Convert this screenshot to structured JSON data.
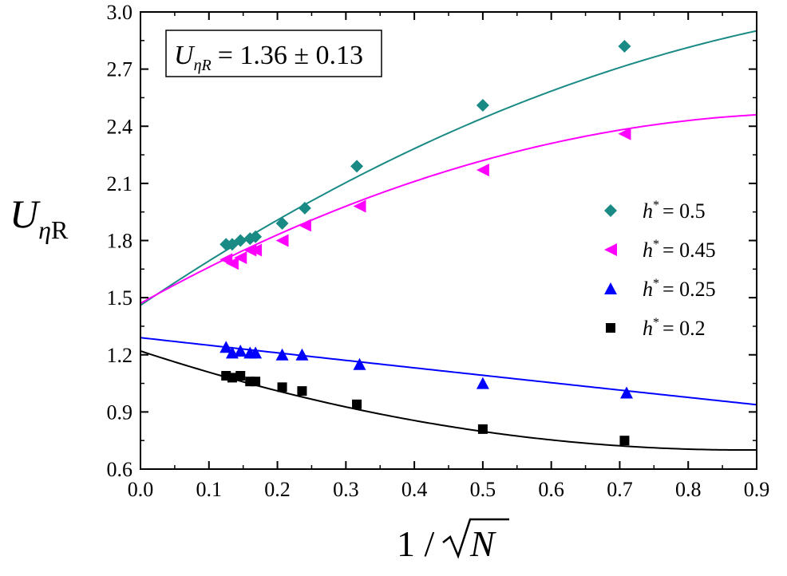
{
  "annotation": {
    "symbol": "U",
    "subscript": "ηR",
    "value_text": "= 1.36 ± 0.13"
  },
  "chart_data": {
    "type": "scatter",
    "title": "",
    "xlabel": "1 / √N",
    "ylabel": "UηR",
    "xlim": [
      0.0,
      0.9
    ],
    "ylim": [
      0.6,
      3.0
    ],
    "xticks": [
      0.0,
      0.1,
      0.2,
      0.3,
      0.4,
      0.5,
      0.6,
      0.7,
      0.8,
      0.9
    ],
    "xtick_labels": [
      "0.0",
      "0.1",
      "0.2",
      "0.3",
      "0.4",
      "0.5",
      "0.6",
      "0.7",
      "0.8",
      "0.9"
    ],
    "yticks": [
      0.6,
      0.9,
      1.2,
      1.5,
      1.8,
      2.1,
      2.4,
      2.7,
      3.0
    ],
    "ytick_labels": [
      "0.6",
      "0.9",
      "1.2",
      "1.5",
      "1.8",
      "2.1",
      "2.4",
      "2.7",
      "3.0"
    ],
    "grid": false,
    "legend_position": "right",
    "series": [
      {
        "name": "h* = 0.5",
        "legend_value": "= 0.5",
        "marker": "diamond",
        "color": "#1a8a85",
        "points": [
          [
            0.125,
            1.78
          ],
          [
            0.134,
            1.78
          ],
          [
            0.146,
            1.8
          ],
          [
            0.16,
            1.81
          ],
          [
            0.168,
            1.82
          ],
          [
            0.207,
            1.89
          ],
          [
            0.24,
            1.97
          ],
          [
            0.316,
            2.19
          ],
          [
            0.5,
            2.51
          ],
          [
            0.707,
            2.82
          ]
        ],
        "fit": [
          1.46,
          2.42,
          -0.91
        ]
      },
      {
        "name": "h* = 0.45",
        "legend_value": "= 0.45",
        "marker": "triangle-left",
        "color": "#ff00ff",
        "points": [
          [
            0.125,
            1.7
          ],
          [
            0.134,
            1.68
          ],
          [
            0.146,
            1.71
          ],
          [
            0.16,
            1.75
          ],
          [
            0.168,
            1.75
          ],
          [
            0.207,
            1.8
          ],
          [
            0.24,
            1.88
          ],
          [
            0.32,
            1.98
          ],
          [
            0.5,
            2.17
          ],
          [
            0.707,
            2.36
          ]
        ],
        "fit": [
          1.47,
          2.0,
          -1.0
        ]
      },
      {
        "name": "h* = 0.25",
        "legend_value": "= 0.25",
        "marker": "triangle-up",
        "color": "#0000ff",
        "points": [
          [
            0.125,
            1.24
          ],
          [
            0.134,
            1.21
          ],
          [
            0.146,
            1.22
          ],
          [
            0.16,
            1.21
          ],
          [
            0.168,
            1.21
          ],
          [
            0.207,
            1.2
          ],
          [
            0.236,
            1.2
          ],
          [
            0.32,
            1.15
          ],
          [
            0.5,
            1.05
          ],
          [
            0.71,
            1.0
          ]
        ],
        "fit": [
          1.29,
          -0.4,
          0.01
        ]
      },
      {
        "name": "h* = 0.2",
        "legend_value": "= 0.2",
        "marker": "square",
        "color": "#000000",
        "points": [
          [
            0.125,
            1.09
          ],
          [
            0.134,
            1.08
          ],
          [
            0.146,
            1.09
          ],
          [
            0.16,
            1.06
          ],
          [
            0.168,
            1.06
          ],
          [
            0.207,
            1.03
          ],
          [
            0.236,
            1.01
          ],
          [
            0.316,
            0.94
          ],
          [
            0.5,
            0.81
          ],
          [
            0.707,
            0.75
          ]
        ],
        "fit": [
          1.22,
          -1.18,
          0.67
        ]
      }
    ]
  }
}
